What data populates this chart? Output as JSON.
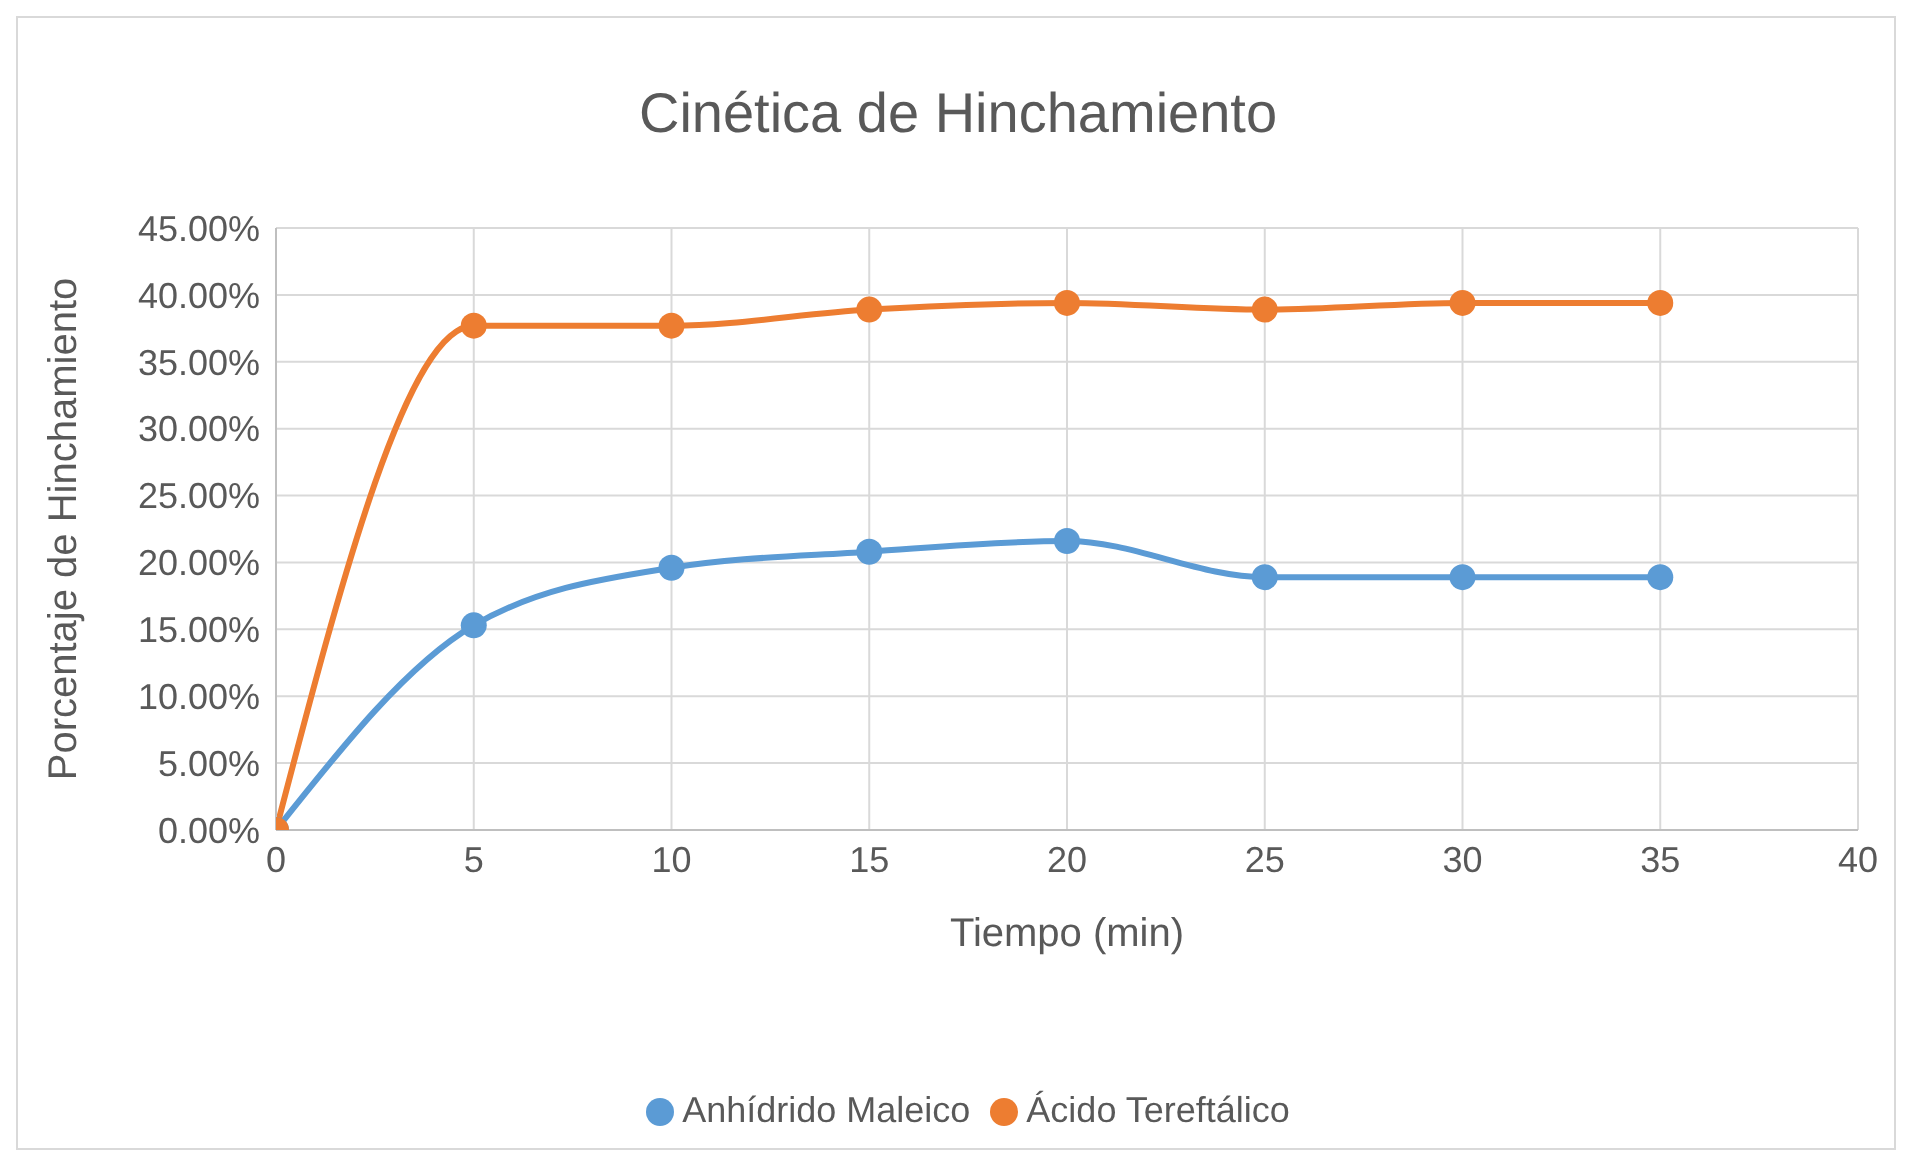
{
  "chart_data": {
    "type": "line",
    "title": "Cinética de Hinchamiento",
    "xlabel": "Tiempo (min)",
    "ylabel": "Porcentaje de Hinchamiento",
    "x": [
      0,
      5,
      10,
      15,
      20,
      25,
      30,
      35
    ],
    "series": [
      {
        "name": "Anhídrido Maleico",
        "color": "#5b9bd5",
        "values": [
          0,
          15.3,
          19.6,
          20.8,
          21.6,
          18.9,
          18.9,
          18.9
        ]
      },
      {
        "name": "Ácido Tereftálico",
        "color": "#ed7d31",
        "values": [
          0,
          37.7,
          37.7,
          38.9,
          39.4,
          38.9,
          39.4,
          39.4
        ]
      }
    ],
    "xlim": [
      0,
      40
    ],
    "xticks": [
      0,
      5,
      10,
      15,
      20,
      25,
      30,
      35,
      40
    ],
    "ylim": [
      0,
      45
    ],
    "yticks": [
      {
        "value": 0,
        "label": "0.00%"
      },
      {
        "value": 5,
        "label": "5.00%"
      },
      {
        "value": 10,
        "label": "10.00%"
      },
      {
        "value": 15,
        "label": "15.00%"
      },
      {
        "value": 20,
        "label": "20.00%"
      },
      {
        "value": 25,
        "label": "25.00%"
      },
      {
        "value": 30,
        "label": "30.00%"
      },
      {
        "value": 35,
        "label": "35.00%"
      },
      {
        "value": 40,
        "label": "40.00%"
      },
      {
        "value": 45,
        "label": "45.00%"
      }
    ],
    "grid": true,
    "legend": "bottom",
    "marker": "circle",
    "line_style": "solid"
  }
}
